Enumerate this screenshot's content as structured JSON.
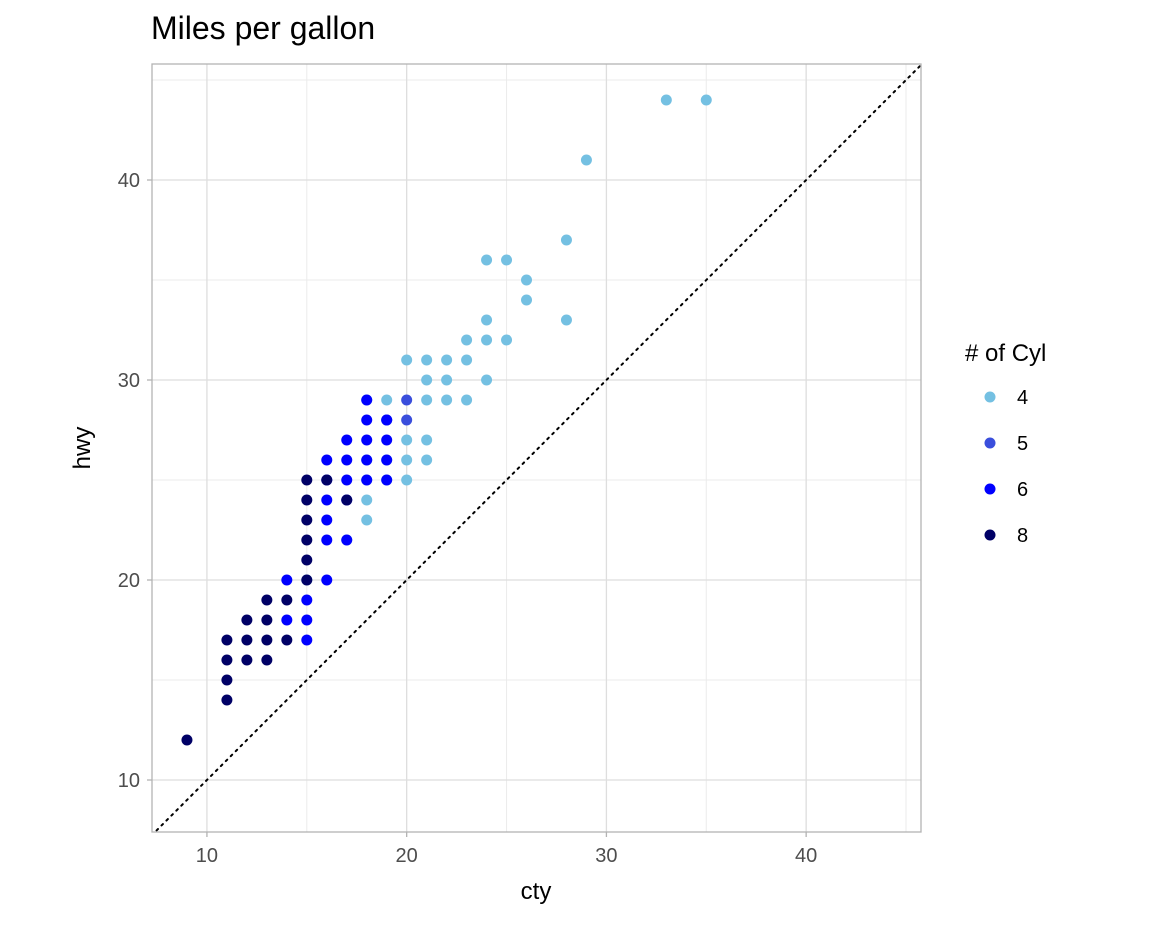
{
  "chart_data": {
    "type": "scatter",
    "title": "Miles per gallon",
    "xlabel": "cty",
    "ylabel": "hwy",
    "xlim": [
      7.25,
      45.75
    ],
    "ylim": [
      7.4,
      45.8
    ],
    "x_ticks": [
      10,
      20,
      30,
      40
    ],
    "y_ticks": [
      10,
      20,
      30,
      40
    ],
    "x_minor": [
      15,
      25,
      35,
      45
    ],
    "y_minor": [
      15,
      25,
      35,
      45
    ],
    "grid": true,
    "reference_line": {
      "style": "dotted",
      "slope": 1,
      "intercept": 0,
      "color": "#000000"
    },
    "legend": {
      "title": "# of Cyl",
      "position": "right",
      "entries": [
        {
          "label": "4",
          "color": "#74C0E2"
        },
        {
          "label": "5",
          "color": "#3A4EDC"
        },
        {
          "label": "6",
          "color": "#0000FF"
        },
        {
          "label": "8",
          "color": "#000066"
        }
      ]
    },
    "series": [
      {
        "name": "4",
        "color": "#74C0E2",
        "points": [
          [
            33,
            44
          ],
          [
            35,
            44
          ],
          [
            29,
            41
          ],
          [
            28,
            37
          ],
          [
            24,
            36
          ],
          [
            25,
            36
          ],
          [
            26,
            35
          ],
          [
            26,
            34
          ],
          [
            24,
            33
          ],
          [
            28,
            33
          ],
          [
            23,
            32
          ],
          [
            24,
            32
          ],
          [
            25,
            32
          ],
          [
            20,
            31
          ],
          [
            21,
            31
          ],
          [
            22,
            31
          ],
          [
            23,
            31
          ],
          [
            21,
            30
          ],
          [
            22,
            30
          ],
          [
            24,
            30
          ],
          [
            18,
            29
          ],
          [
            19,
            29
          ],
          [
            21,
            29
          ],
          [
            22,
            29
          ],
          [
            23,
            29
          ],
          [
            19,
            28
          ],
          [
            20,
            27
          ],
          [
            21,
            27
          ],
          [
            18,
            26
          ],
          [
            19,
            26
          ],
          [
            20,
            26
          ],
          [
            21,
            26
          ],
          [
            18,
            25
          ],
          [
            19,
            25
          ],
          [
            20,
            25
          ],
          [
            18,
            24
          ],
          [
            18,
            23
          ],
          [
            17,
            22
          ],
          [
            15,
            20
          ]
        ]
      },
      {
        "name": "5",
        "color": "#3A4EDC",
        "points": [
          [
            20,
            29
          ],
          [
            20,
            28
          ],
          [
            19,
            28
          ]
        ]
      },
      {
        "name": "6",
        "color": "#0000FF",
        "points": [
          [
            18,
            29
          ],
          [
            18,
            28
          ],
          [
            19,
            28
          ],
          [
            17,
            27
          ],
          [
            18,
            27
          ],
          [
            19,
            27
          ],
          [
            16,
            26
          ],
          [
            17,
            26
          ],
          [
            18,
            26
          ],
          [
            19,
            26
          ],
          [
            16,
            25
          ],
          [
            17,
            25
          ],
          [
            18,
            25
          ],
          [
            19,
            25
          ],
          [
            16,
            24
          ],
          [
            17,
            24
          ],
          [
            16,
            23
          ],
          [
            16,
            22
          ],
          [
            17,
            22
          ],
          [
            14,
            20
          ],
          [
            16,
            20
          ],
          [
            15,
            19
          ],
          [
            14,
            18
          ],
          [
            15,
            18
          ],
          [
            15,
            17
          ]
        ]
      },
      {
        "name": "8",
        "color": "#000066",
        "points": [
          [
            15,
            25
          ],
          [
            16,
            25
          ],
          [
            15,
            24
          ],
          [
            17,
            24
          ],
          [
            15,
            23
          ],
          [
            15,
            22
          ],
          [
            15,
            21
          ],
          [
            15,
            20
          ],
          [
            13,
            19
          ],
          [
            14,
            19
          ],
          [
            12,
            18
          ],
          [
            13,
            18
          ],
          [
            11,
            17
          ],
          [
            12,
            17
          ],
          [
            13,
            17
          ],
          [
            14,
            17
          ],
          [
            11,
            16
          ],
          [
            12,
            16
          ],
          [
            13,
            16
          ],
          [
            11,
            15
          ],
          [
            11,
            14
          ],
          [
            9,
            12
          ]
        ]
      }
    ]
  }
}
